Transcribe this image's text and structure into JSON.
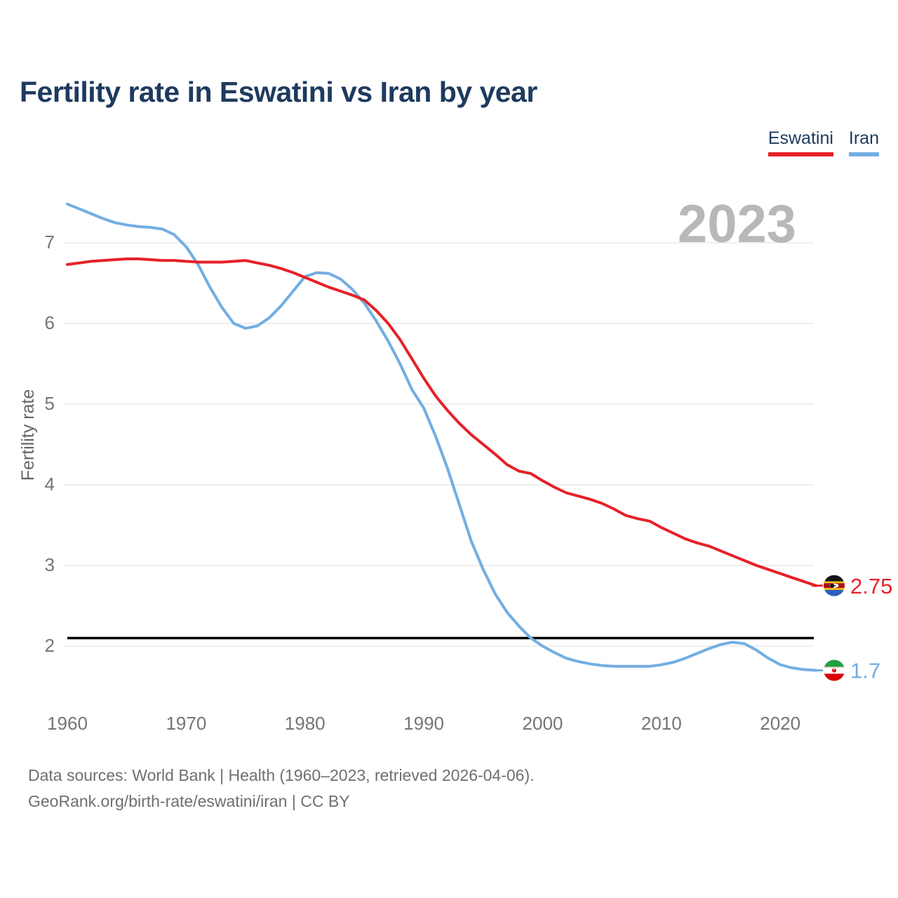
{
  "header": {
    "title": "Fertility rate in Eswatini vs Iran by year"
  },
  "colors": {
    "title_text": "#1e3a5e",
    "eswatini": "#e62129",
    "iran": "#72aee2",
    "grid": "#e9e9e9",
    "tick_text": "#757575",
    "axis_label_text": "#666666",
    "watermark": "#b8b8b8",
    "reference_line": "#000000",
    "footer_text": "#6f6f6f"
  },
  "legend": {
    "items": [
      {
        "label": "Eswatini",
        "color": "#e62129"
      },
      {
        "label": "Iran",
        "color": "#72aee2"
      }
    ]
  },
  "watermark": "2023",
  "axis": {
    "y_label": "Fertility rate",
    "y_ticks": [
      2,
      3,
      4,
      5,
      6,
      7
    ],
    "x_ticks": [
      1960,
      1970,
      1980,
      1990,
      2000,
      2010,
      2020
    ]
  },
  "chart_data": {
    "type": "line",
    "title": "Fertility rate in Eswatini vs Iran by year",
    "xlabel": "",
    "ylabel": "Fertility rate",
    "x_range": [
      1960,
      2023
    ],
    "ylim": [
      1.45,
      7.6
    ],
    "grid": "horizontal",
    "legend_position": "top-right",
    "reference_line": 2.1,
    "years": [
      1960,
      1961,
      1962,
      1963,
      1964,
      1965,
      1966,
      1967,
      1968,
      1969,
      1970,
      1971,
      1972,
      1973,
      1974,
      1975,
      1976,
      1977,
      1978,
      1979,
      1980,
      1981,
      1982,
      1983,
      1984,
      1985,
      1986,
      1987,
      1988,
      1989,
      1990,
      1991,
      1992,
      1993,
      1994,
      1995,
      1996,
      1997,
      1998,
      1999,
      2000,
      2001,
      2002,
      2003,
      2004,
      2005,
      2006,
      2007,
      2008,
      2009,
      2010,
      2011,
      2012,
      2013,
      2014,
      2015,
      2016,
      2017,
      2018,
      2019,
      2020,
      2021,
      2022,
      2023
    ],
    "series": [
      {
        "name": "Eswatini",
        "color": "#e62129",
        "end_label": "2.75",
        "end_value": 2.75,
        "flag": "eswatini",
        "values": [
          6.73,
          6.75,
          6.77,
          6.78,
          6.79,
          6.8,
          6.8,
          6.79,
          6.78,
          6.78,
          6.77,
          6.76,
          6.76,
          6.76,
          6.77,
          6.78,
          6.75,
          6.72,
          6.68,
          6.63,
          6.57,
          6.51,
          6.45,
          6.4,
          6.35,
          6.29,
          6.16,
          6.0,
          5.8,
          5.56,
          5.32,
          5.1,
          4.92,
          4.76,
          4.62,
          4.5,
          4.38,
          4.25,
          4.17,
          4.14,
          4.05,
          3.97,
          3.9,
          3.86,
          3.82,
          3.77,
          3.7,
          3.62,
          3.58,
          3.55,
          3.47,
          3.4,
          3.33,
          3.28,
          3.24,
          3.18,
          3.12,
          3.06,
          3.0,
          2.95,
          2.9,
          2.85,
          2.8,
          2.75
        ]
      },
      {
        "name": "Iran",
        "color": "#72aee2",
        "end_label": "1.7",
        "end_value": 1.7,
        "flag": "iran",
        "values": [
          7.48,
          7.42,
          7.36,
          7.3,
          7.25,
          7.22,
          7.2,
          7.19,
          7.17,
          7.1,
          6.95,
          6.73,
          6.45,
          6.2,
          6.0,
          5.94,
          5.97,
          6.07,
          6.22,
          6.4,
          6.58,
          6.63,
          6.62,
          6.55,
          6.42,
          6.25,
          6.03,
          5.78,
          5.5,
          5.18,
          4.95,
          4.6,
          4.2,
          3.75,
          3.3,
          2.95,
          2.65,
          2.42,
          2.25,
          2.1,
          2.0,
          1.92,
          1.85,
          1.81,
          1.78,
          1.76,
          1.75,
          1.75,
          1.75,
          1.75,
          1.77,
          1.8,
          1.85,
          1.91,
          1.97,
          2.02,
          2.05,
          2.03,
          1.95,
          1.85,
          1.77,
          1.73,
          1.71,
          1.7
        ]
      }
    ]
  },
  "footer": {
    "line1": "Data sources: World Bank | Health (1960–2023, retrieved 2026-04-06).",
    "line2": "GeoRank.org/birth-rate/eswatini/iran | CC BY"
  }
}
